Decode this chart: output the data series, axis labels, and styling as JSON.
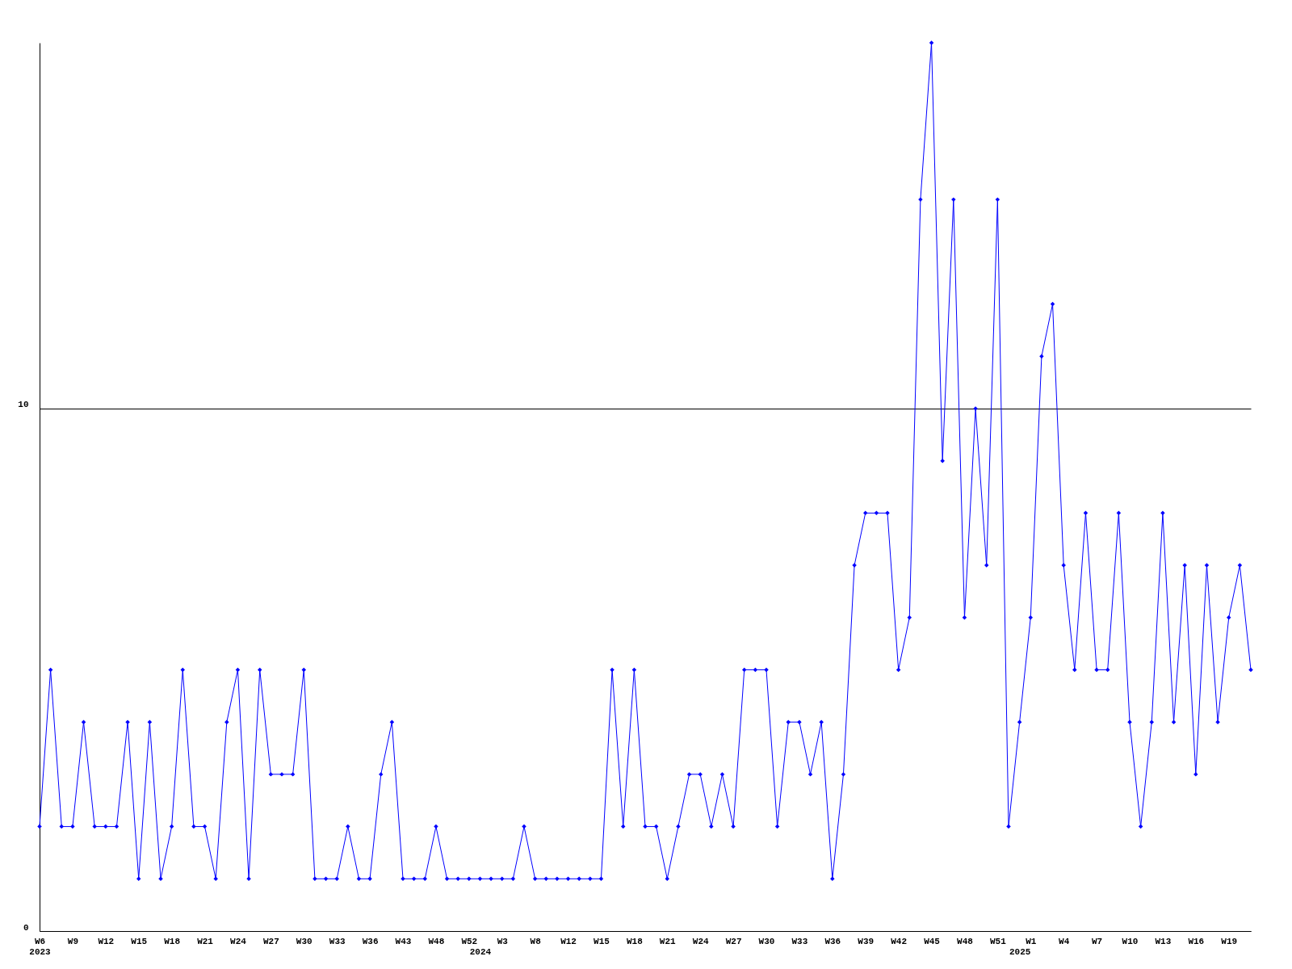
{
  "chart_data": {
    "type": "line",
    "categories": [
      "W6\n2023",
      null,
      null,
      "W9",
      null,
      null,
      "W12",
      null,
      null,
      "W15",
      null,
      null,
      "W18",
      null,
      null,
      "W21",
      null,
      null,
      "W24",
      null,
      null,
      "W27",
      null,
      null,
      "W30",
      null,
      null,
      "W33",
      null,
      null,
      "W36",
      null,
      null,
      "W43",
      null,
      null,
      "W48",
      null,
      null,
      "W52",
      "\n2024",
      null,
      "W3",
      null,
      null,
      "W8",
      null,
      null,
      "W12",
      null,
      null,
      "W15",
      null,
      null,
      "W18",
      null,
      null,
      "W21",
      null,
      null,
      "W24",
      null,
      null,
      "W27",
      null,
      null,
      "W30",
      null,
      null,
      "W33",
      null,
      null,
      "W36",
      null,
      null,
      "W39",
      null,
      null,
      "W42",
      null,
      null,
      "W45",
      null,
      null,
      "W48",
      null,
      null,
      "W51",
      null,
      "\n2025",
      "W1",
      null,
      null,
      "W4",
      null,
      null,
      "W7",
      null,
      null,
      "W10",
      null,
      null,
      "W13",
      null,
      null,
      "W16",
      null,
      null,
      "W19",
      null,
      null
    ],
    "series": [
      {
        "color": "#0000ff",
        "values": [
          2,
          5,
          2,
          2,
          4,
          2,
          2,
          2,
          4,
          1,
          4,
          1,
          2,
          5,
          2,
          2,
          1,
          4,
          5,
          1,
          5,
          3,
          3,
          3,
          5,
          1,
          1,
          1,
          2,
          1,
          1,
          3,
          4,
          1,
          1,
          1,
          2,
          1,
          1,
          1,
          1,
          1,
          1,
          1,
          2,
          1,
          1,
          1,
          1,
          1,
          1,
          1,
          5,
          2,
          5,
          2,
          2,
          1,
          2,
          3,
          3,
          2,
          3,
          2,
          5,
          5,
          5,
          2,
          4,
          4,
          3,
          4,
          1,
          3,
          7,
          8,
          8,
          8,
          5,
          6,
          14,
          17,
          9,
          14,
          6,
          10,
          7,
          14,
          2,
          4,
          6,
          11,
          12,
          7,
          5,
          8,
          5,
          5,
          8,
          4,
          2,
          4,
          8,
          4,
          7,
          3,
          7,
          4,
          6,
          7,
          5
        ]
      }
    ],
    "ylim": [
      0,
      17
    ],
    "yticks": [
      0,
      10
    ],
    "grid": "y",
    "marker": "diamond",
    "line_style": "solid"
  }
}
